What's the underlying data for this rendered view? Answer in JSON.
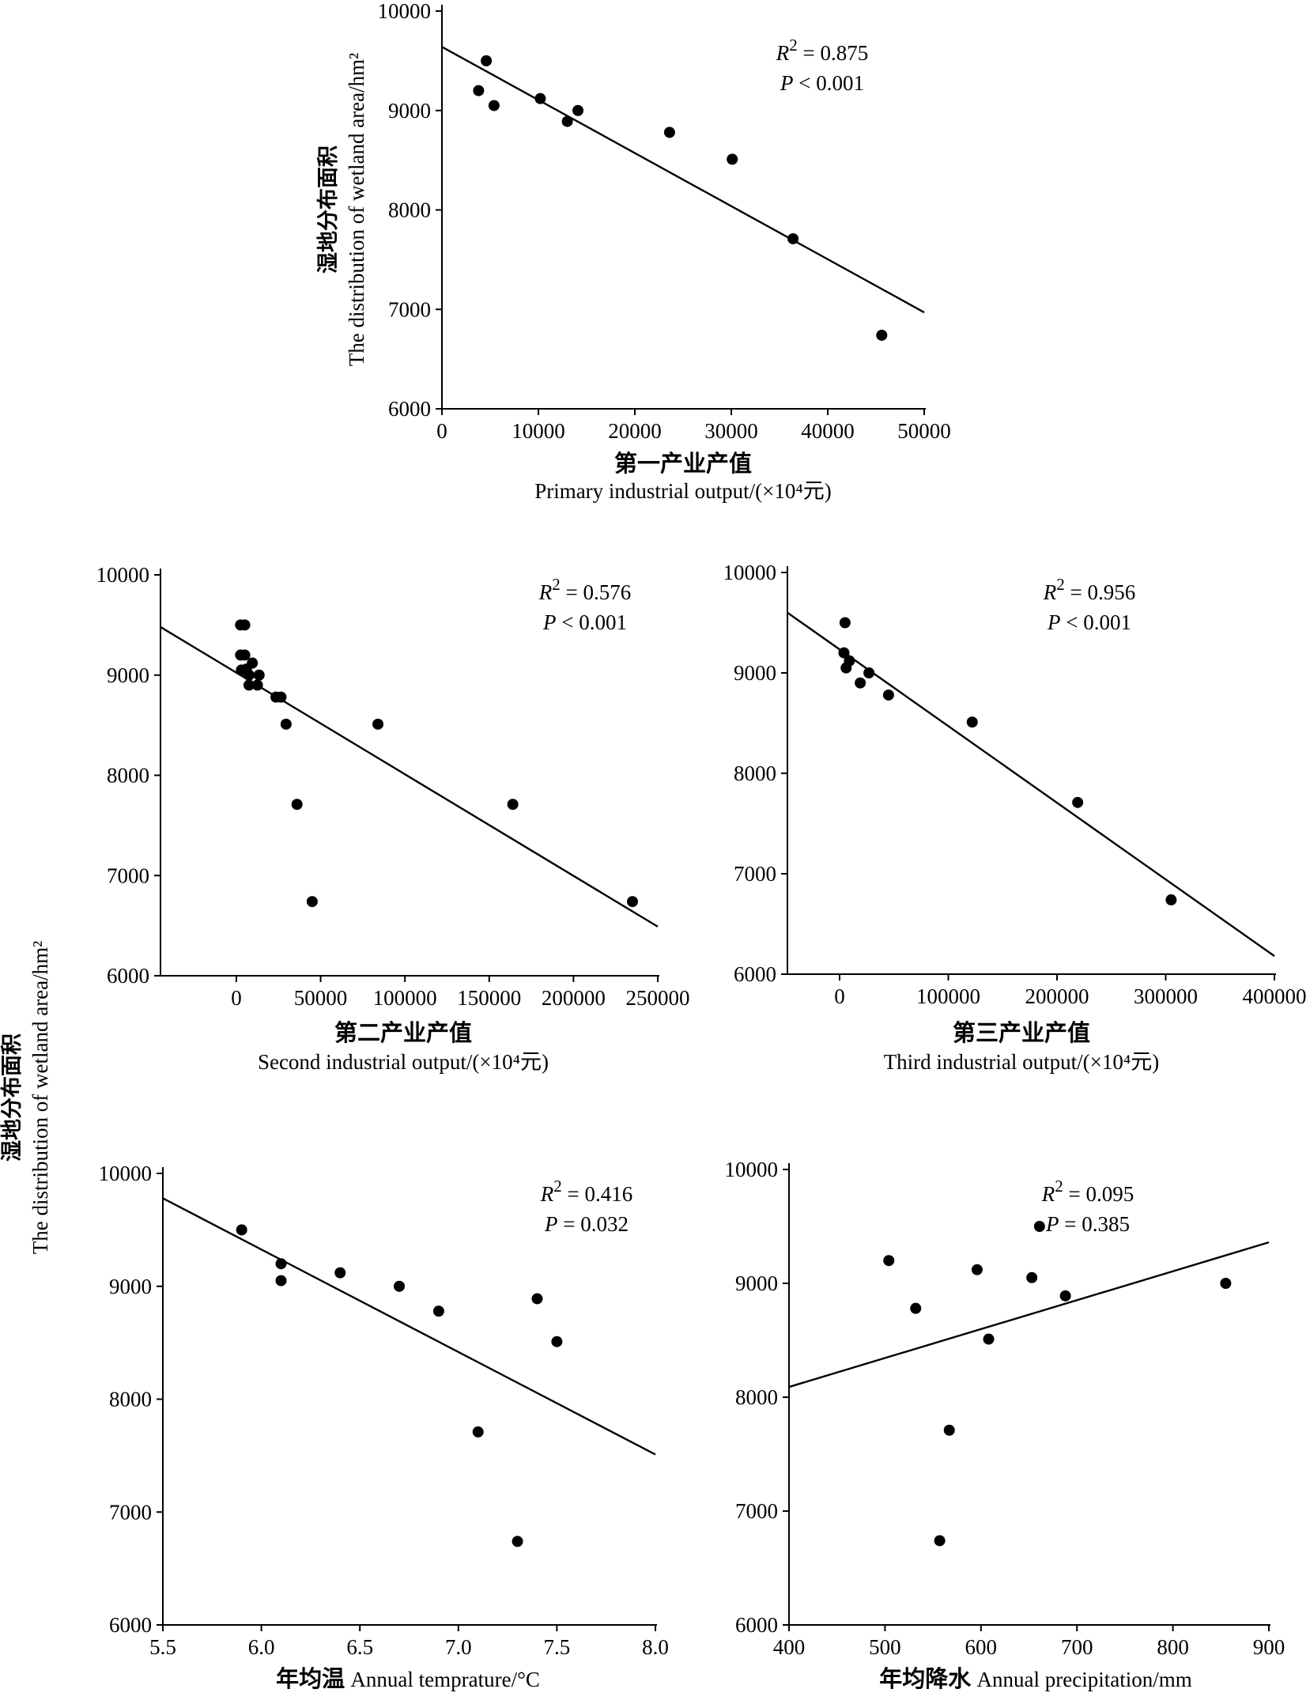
{
  "shared_ylabel": {
    "cn": "湿地分布面积",
    "en": "The distribution of wetland area/hm²"
  },
  "chart_data": [
    {
      "type": "scatter",
      "xlabel_cn": "第一产业产值",
      "xlabel_en": "Primary  industrial output/(×10⁴元)",
      "ylabel_cn": "湿地分布面积",
      "ylabel_en": "The distribution of wetland area/hm²",
      "xlim": [
        0,
        50000
      ],
      "ylim": [
        6000,
        10000
      ],
      "xticks": [
        0,
        10000,
        20000,
        30000,
        40000,
        50000
      ],
      "yticks": [
        6000,
        7000,
        8000,
        9000,
        10000
      ],
      "xtick_labels": [
        "0",
        "10000",
        "20000",
        "30000",
        "40000",
        "50000"
      ],
      "ytick_labels": [
        "6000",
        "7000",
        "8000",
        "9000",
        "10000"
      ],
      "points": [
        {
          "x": 3800,
          "y": 9200
        },
        {
          "x": 4600,
          "y": 9500
        },
        {
          "x": 5400,
          "y": 9050
        },
        {
          "x": 10200,
          "y": 9120
        },
        {
          "x": 13000,
          "y": 8890
        },
        {
          "x": 14100,
          "y": 9000
        },
        {
          "x": 23600,
          "y": 8780
        },
        {
          "x": 30100,
          "y": 8510
        },
        {
          "x": 36400,
          "y": 7710
        },
        {
          "x": 45600,
          "y": 6740
        }
      ],
      "fit_line": {
        "x": [
          0,
          50000
        ],
        "y": [
          9640,
          6970
        ]
      },
      "r2_text": "0.875",
      "p_text": "< 0.001"
    },
    {
      "type": "scatter",
      "xlabel_cn": "第二产业产值",
      "xlabel_en": "Second  industrial output/(×10⁴元)",
      "xlim": [
        -45000,
        250000
      ],
      "ylim": [
        6000,
        10000
      ],
      "xticks": [
        0,
        50000,
        100000,
        150000,
        200000,
        250000
      ],
      "yticks": [
        6000,
        7000,
        8000,
        9000,
        10000
      ],
      "xtick_labels": [
        "0",
        "50000",
        "100000",
        "150000",
        "200000",
        "250000"
      ],
      "ytick_labels": [
        "6000",
        "7000",
        "8000",
        "9000",
        "10000"
      ],
      "points": [
        {
          "x": 2500,
          "y": 9500
        },
        {
          "x": 5000,
          "y": 9500
        },
        {
          "x": 2500,
          "y": 9200
        },
        {
          "x": 5000,
          "y": 9200
        },
        {
          "x": 3000,
          "y": 9050
        },
        {
          "x": 6000,
          "y": 9060
        },
        {
          "x": 9500,
          "y": 9120
        },
        {
          "x": 7500,
          "y": 9000
        },
        {
          "x": 13500,
          "y": 9000
        },
        {
          "x": 7500,
          "y": 8900
        },
        {
          "x": 12500,
          "y": 8900
        },
        {
          "x": 23500,
          "y": 8780
        },
        {
          "x": 26500,
          "y": 8780
        },
        {
          "x": 29500,
          "y": 8510
        },
        {
          "x": 84000,
          "y": 8510
        },
        {
          "x": 36000,
          "y": 7710
        },
        {
          "x": 164000,
          "y": 7710
        },
        {
          "x": 45000,
          "y": 6740
        },
        {
          "x": 235000,
          "y": 6740
        }
      ],
      "fit_line": {
        "x": [
          -45000,
          250000
        ],
        "y": [
          9480,
          6490
        ]
      },
      "r2_text": "0.576",
      "p_text": "< 0.001"
    },
    {
      "type": "scatter",
      "xlabel_cn": "第三产业产值",
      "xlabel_en": "Third  industrial output/(×10⁴元)",
      "xlim": [
        -48000,
        400000
      ],
      "ylim": [
        6000,
        10000
      ],
      "xticks": [
        0,
        100000,
        200000,
        300000,
        400000
      ],
      "yticks": [
        6000,
        7000,
        8000,
        9000,
        10000
      ],
      "xtick_labels": [
        "0",
        "100000",
        "200000",
        "300000",
        "400000"
      ],
      "ytick_labels": [
        "6000",
        "7000",
        "8000",
        "9000",
        "10000"
      ],
      "points": [
        {
          "x": 5000,
          "y": 9500
        },
        {
          "x": 4000,
          "y": 9200
        },
        {
          "x": 9000,
          "y": 9120
        },
        {
          "x": 6000,
          "y": 9050
        },
        {
          "x": 27000,
          "y": 9000
        },
        {
          "x": 19000,
          "y": 8900
        },
        {
          "x": 45000,
          "y": 8780
        },
        {
          "x": 122000,
          "y": 8510
        },
        {
          "x": 219000,
          "y": 7710
        },
        {
          "x": 305000,
          "y": 6740
        }
      ],
      "fit_line": {
        "x": [
          -48000,
          400000
        ],
        "y": [
          9600,
          6180
        ]
      },
      "r2_text": "0.956",
      "p_text": "< 0.001"
    },
    {
      "type": "scatter",
      "xlabel_cn": "年均温",
      "xlabel_en": "Annual temprature/°C",
      "xlim": [
        5.5,
        8.0
      ],
      "ylim": [
        6000,
        10000
      ],
      "xticks": [
        5.5,
        6.0,
        6.5,
        7.0,
        7.5,
        8.0
      ],
      "yticks": [
        6000,
        7000,
        8000,
        9000,
        10000
      ],
      "xtick_labels": [
        "5.5",
        "6.0",
        "6.5",
        "7.0",
        "7.5",
        "8.0"
      ],
      "ytick_labels": [
        "6000",
        "7000",
        "8000",
        "9000",
        "10000"
      ],
      "points": [
        {
          "x": 5.9,
          "y": 9500
        },
        {
          "x": 6.1,
          "y": 9200
        },
        {
          "x": 6.1,
          "y": 9050
        },
        {
          "x": 6.4,
          "y": 9120
        },
        {
          "x": 6.7,
          "y": 9000
        },
        {
          "x": 6.9,
          "y": 8780
        },
        {
          "x": 7.4,
          "y": 8890
        },
        {
          "x": 7.5,
          "y": 8510
        },
        {
          "x": 7.1,
          "y": 7710
        },
        {
          "x": 7.3,
          "y": 6740
        }
      ],
      "fit_line": {
        "x": [
          5.5,
          8.0
        ],
        "y": [
          9780,
          7510
        ]
      },
      "r2_text": " 0.416",
      "p_text": "= 0.032"
    },
    {
      "type": "scatter",
      "xlabel_cn": "年均降水",
      "xlabel_en": "Annual precipitation/mm",
      "xlim": [
        400,
        900
      ],
      "ylim": [
        6000,
        10000
      ],
      "xticks": [
        400,
        500,
        600,
        700,
        800,
        900
      ],
      "yticks": [
        6000,
        7000,
        8000,
        9000,
        10000
      ],
      "xtick_labels": [
        "400",
        "500",
        "600",
        "700",
        "800",
        "900"
      ],
      "ytick_labels": [
        "6000",
        "7000",
        "8000",
        "9000",
        "10000"
      ],
      "points": [
        {
          "x": 504,
          "y": 9200
        },
        {
          "x": 532,
          "y": 8780
        },
        {
          "x": 596,
          "y": 9120
        },
        {
          "x": 653,
          "y": 9050
        },
        {
          "x": 661,
          "y": 9500
        },
        {
          "x": 688,
          "y": 8890
        },
        {
          "x": 608,
          "y": 8510
        },
        {
          "x": 567,
          "y": 7710
        },
        {
          "x": 557,
          "y": 6740
        },
        {
          "x": 855,
          "y": 9000
        }
      ],
      "fit_line": {
        "x": [
          400,
          900
        ],
        "y": [
          8090,
          9360
        ]
      },
      "r2_text": "0.095",
      "p_text": "= 0.385"
    }
  ]
}
